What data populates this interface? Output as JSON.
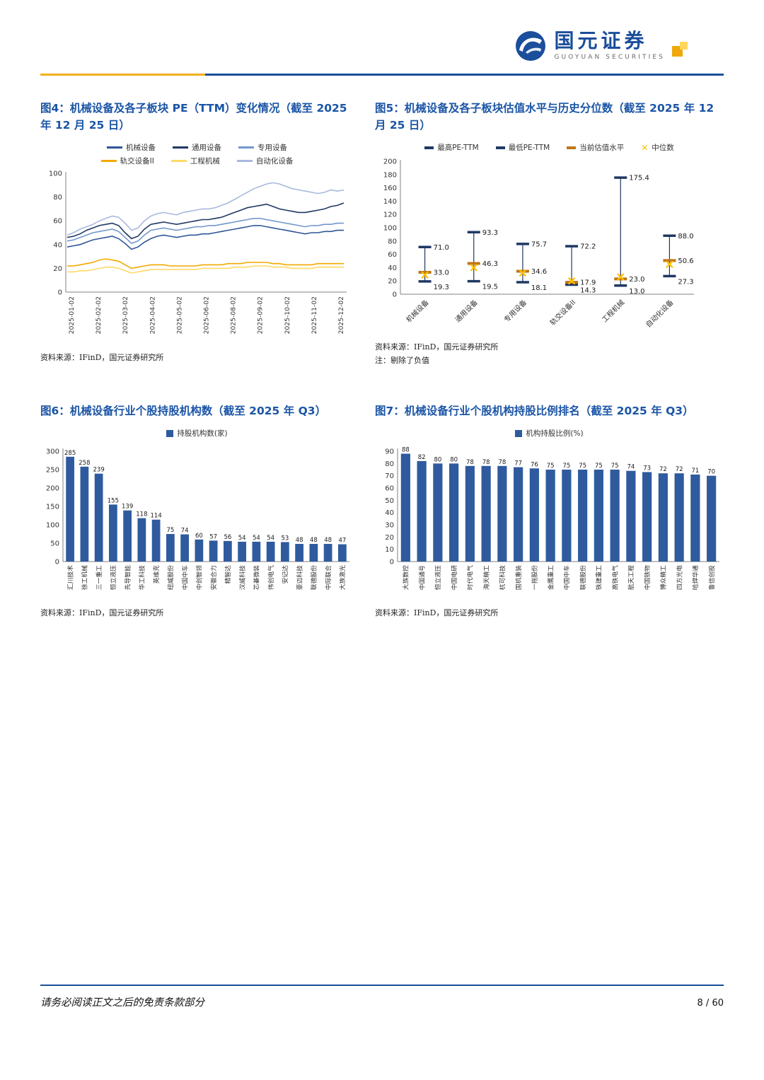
{
  "brand": {
    "name_cn": "国元证券",
    "name_en": "GUOYUAN SECURITIES"
  },
  "footer": {
    "disclaimer": "请务必阅读正文之后的免责条款部分",
    "page_number": "8 / 60"
  },
  "figures": [
    {
      "title": "图4：机械设备及各子板块 PE（TTM）变化情况（截至 2025 年 12 月 25 日）",
      "source": "资料来源：IFinD，国元证券研究所"
    },
    {
      "title": "图5：机械设备及各子板块估值水平与历史分位数（截至 2025 年 12 月 25 日）",
      "source": "资料来源：IFinD，国元证券研究所",
      "note": "注：剔除了负值"
    },
    {
      "title": "图6：机械设备行业个股持股机构数（截至 2025 年 Q3）",
      "source": "资料来源：IFinD，国元证券研究所"
    },
    {
      "title": "图7：机械设备行业个股机构持股比例排名（截至 2025 年 Q3）",
      "source": "资料来源：IFinD，国元证券研究所"
    }
  ],
  "chart_data": [
    {
      "type": "line",
      "title": "机械设备及各子板块 PE（TTM）变化情况",
      "ylim": [
        0,
        100
      ],
      "yticks": [
        0,
        20,
        40,
        60,
        80,
        100
      ],
      "x_tick_labels": [
        "2025-01-02",
        "2025-02-02",
        "2025-03-02",
        "2025-04-02",
        "2025-05-02",
        "2025-06-02",
        "2025-08-02",
        "2025-09-02",
        "2025-10-02",
        "2025-11-02",
        "2025-12-02"
      ],
      "legend_rows": [
        [
          {
            "label": "机械设备",
            "color": "#2F5597",
            "type": "line"
          },
          {
            "label": "通用设备",
            "color": "#1F3864",
            "type": "line"
          },
          {
            "label": "专用设备",
            "color": "#7398CB",
            "type": "line"
          }
        ],
        [
          {
            "label": "轨交设备II",
            "color": "#F2A900",
            "type": "line"
          },
          {
            "label": "工程机械",
            "color": "#FFD966",
            "type": "line"
          },
          {
            "label": "自动化设备",
            "color": "#AAB8DF",
            "type": "line"
          }
        ]
      ],
      "series": [
        {
          "name": "机械设备",
          "color": "#2F5597",
          "values": [
            38,
            39,
            40,
            42,
            44,
            45,
            46,
            47,
            45,
            41,
            36,
            38,
            42,
            45,
            47,
            48,
            47,
            46,
            47,
            48,
            48,
            49,
            49,
            50,
            51,
            52,
            53,
            54,
            55,
            56,
            56,
            55,
            54,
            53,
            52,
            51,
            50,
            49,
            50,
            50,
            51,
            51,
            52,
            52
          ]
        },
        {
          "name": "通用设备",
          "color": "#1F3864",
          "values": [
            46,
            47,
            49,
            52,
            54,
            56,
            57,
            58,
            56,
            50,
            45,
            47,
            53,
            57,
            58,
            59,
            58,
            57,
            58,
            59,
            60,
            61,
            61,
            62,
            63,
            65,
            67,
            69,
            71,
            72,
            73,
            74,
            72,
            70,
            69,
            68,
            67,
            67,
            68,
            69,
            70,
            72,
            73,
            75
          ]
        },
        {
          "name": "专用设备",
          "color": "#7398CB",
          "values": [
            43,
            44,
            46,
            48,
            50,
            51,
            52,
            53,
            51,
            46,
            41,
            43,
            48,
            52,
            53,
            54,
            53,
            52,
            53,
            54,
            55,
            55,
            56,
            56,
            57,
            58,
            59,
            60,
            61,
            62,
            62,
            61,
            60,
            59,
            58,
            57,
            56,
            55,
            56,
            56,
            57,
            57,
            58,
            58
          ]
        },
        {
          "name": "轨交设备II",
          "color": "#F2A900",
          "values": [
            22,
            22,
            23,
            24,
            25,
            27,
            28,
            27,
            26,
            23,
            20,
            21,
            22,
            23,
            23,
            23,
            22,
            22,
            22,
            22,
            22,
            23,
            23,
            23,
            23,
            24,
            24,
            24,
            25,
            25,
            25,
            25,
            24,
            24,
            23,
            23,
            23,
            23,
            23,
            24,
            24,
            24,
            24,
            24
          ]
        },
        {
          "name": "工程机械",
          "color": "#FFD966",
          "values": [
            17,
            17,
            18,
            18,
            19,
            20,
            21,
            21,
            20,
            18,
            16,
            17,
            18,
            19,
            19,
            19,
            19,
            19,
            19,
            19,
            19,
            20,
            20,
            20,
            20,
            20,
            21,
            21,
            21,
            22,
            22,
            22,
            21,
            21,
            21,
            20,
            20,
            20,
            20,
            21,
            21,
            21,
            21,
            21
          ]
        },
        {
          "name": "自动化设备",
          "color": "#AAB8DF",
          "values": [
            48,
            50,
            53,
            55,
            57,
            60,
            62,
            64,
            63,
            58,
            52,
            54,
            60,
            64,
            66,
            67,
            66,
            65,
            67,
            68,
            69,
            70,
            70,
            71,
            73,
            75,
            78,
            81,
            84,
            87,
            89,
            91,
            92,
            91,
            89,
            87,
            86,
            85,
            84,
            83,
            84,
            86,
            85,
            86
          ]
        }
      ]
    },
    {
      "type": "hilo",
      "title": "机械设备及各子板块估值水平与历史分位数",
      "ylim": [
        0,
        200
      ],
      "yticks": [
        0,
        20,
        40,
        60,
        80,
        100,
        120,
        140,
        160,
        180,
        200
      ],
      "categories": [
        "机械设备",
        "通用设备",
        "专用设备",
        "轨交设备II",
        "工程机械",
        "自动化设备"
      ],
      "high": [
        71.0,
        93.3,
        75.7,
        72.2,
        175.4,
        88.0
      ],
      "low": [
        19.3,
        19.5,
        18.1,
        14.3,
        13.0,
        27.3
      ],
      "current": [
        33.0,
        46.3,
        34.6,
        17.9,
        23.0,
        50.6
      ],
      "median": [
        29,
        40,
        32,
        20,
        26,
        45
      ],
      "value_labels": {
        "high": [
          "71.0",
          "93.3",
          "75.7",
          "72.2",
          "175.4",
          "88.0"
        ],
        "current": [
          "33.0",
          "46.3",
          "34.6",
          "17.9",
          "23.0",
          "50.6"
        ],
        "low": [
          "19.3",
          "19.5",
          "18.1",
          "14.3",
          "13.0",
          "27.3"
        ]
      },
      "colors": {
        "range": "#1F3864",
        "current": "#C07613",
        "median": "#FFC000"
      },
      "legend_rows": [
        [
          {
            "label": "最高PE-TTM",
            "color": "#1F3864",
            "type": "dash"
          },
          {
            "label": "最低PE-TTM",
            "color": "#1F3864",
            "type": "dash"
          },
          {
            "label": "当前估值水平",
            "color": "#C07613",
            "type": "dash"
          },
          {
            "label": "中位数",
            "color": "#FFC000",
            "type": "x"
          }
        ]
      ]
    },
    {
      "type": "bar",
      "title": "机械设备行业个股持股机构数",
      "ylim": [
        0,
        300
      ],
      "yticks": [
        0,
        50,
        100,
        150,
        200,
        250,
        300
      ],
      "color": "#2F5B9E",
      "legend_rows": [
        [
          {
            "label": "持股机构数(家)",
            "color": "#2F5B9E",
            "type": "square"
          }
        ]
      ],
      "categories": [
        "汇川技术",
        "徐工机械",
        "三一重工",
        "恒立液压",
        "先导智能",
        "华工科技",
        "英维克",
        "纽威股份",
        "中国中车",
        "中创智领",
        "安徽合力",
        "精智达",
        "汉威科技",
        "芯碁微装",
        "伟创电气",
        "安记达",
        "豪迈科技",
        "联德股份",
        "中际联合",
        "大族激光"
      ],
      "values": [
        285,
        258,
        239,
        155,
        139,
        118,
        114,
        75,
        74,
        60,
        57,
        56,
        54,
        54,
        54,
        53,
        48,
        48,
        48,
        47
      ]
    },
    {
      "type": "bar",
      "title": "机械设备行业个股机构持股比例排名",
      "ylim": [
        0,
        90
      ],
      "yticks": [
        0,
        10,
        20,
        30,
        40,
        50,
        60,
        70,
        80,
        90
      ],
      "color": "#2F5B9E",
      "legend_rows": [
        [
          {
            "label": "机构持股比例(%)",
            "color": "#2F5B9E",
            "type": "square"
          }
        ]
      ],
      "categories": [
        "大族数控",
        "中国通号",
        "恒立液压",
        "中国电研",
        "时代电气",
        "海天精工",
        "杭可科技",
        "国机重装",
        "一拖股份",
        "金鹰重工",
        "中国中车",
        "联德股份",
        "铁建重工",
        "高铁电气",
        "航天工程",
        "中国铁物",
        "博众精工",
        "四方光电",
        "哈焊华通",
        "鲁信创投"
      ],
      "values": [
        88,
        82,
        80,
        80,
        78,
        78,
        78,
        77,
        76,
        75,
        75,
        75,
        75,
        75,
        74,
        73,
        72,
        72,
        71,
        70
      ]
    }
  ]
}
